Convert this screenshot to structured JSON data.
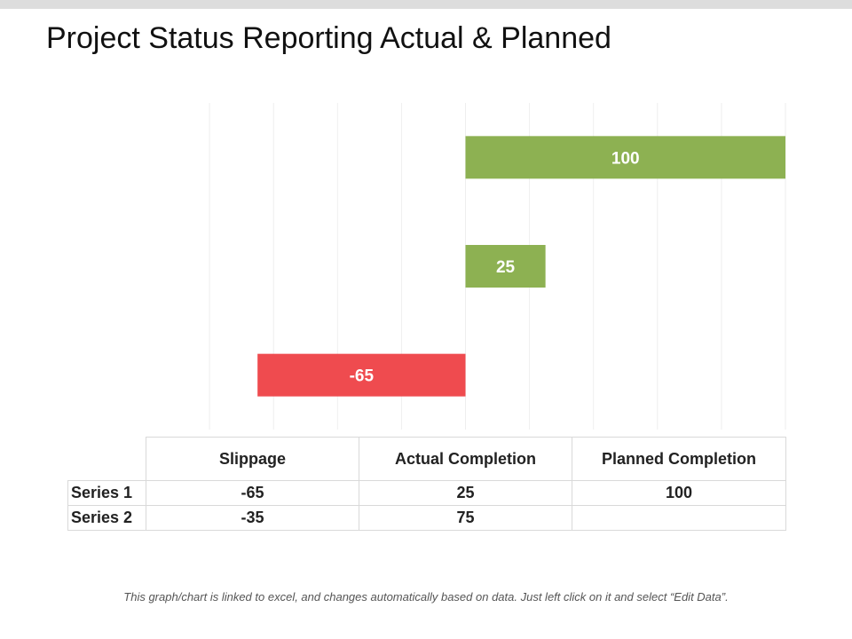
{
  "page": {
    "title": "Project Status Reporting Actual & Planned",
    "footnote": "This graph/chart is linked to excel, and changes automatically based on data.  Just left click on it and select “Edit Data”."
  },
  "colors": {
    "positive": "#8db152",
    "negative": "#ef4b4f",
    "grid": "#eeeeee",
    "label": "#ffffff"
  },
  "chart_data": {
    "type": "bar",
    "orientation": "horizontal",
    "categories": [
      "Slippage",
      "Actual Completion",
      "Planned Completion"
    ],
    "series": [
      {
        "name": "Series 1",
        "values": [
          -65,
          25,
          100
        ]
      },
      {
        "name": "Series 2",
        "values": [
          -35,
          75,
          null
        ]
      }
    ],
    "xlim": [
      -100,
      100
    ],
    "grid": true,
    "data_labels": true,
    "data_table": true
  }
}
